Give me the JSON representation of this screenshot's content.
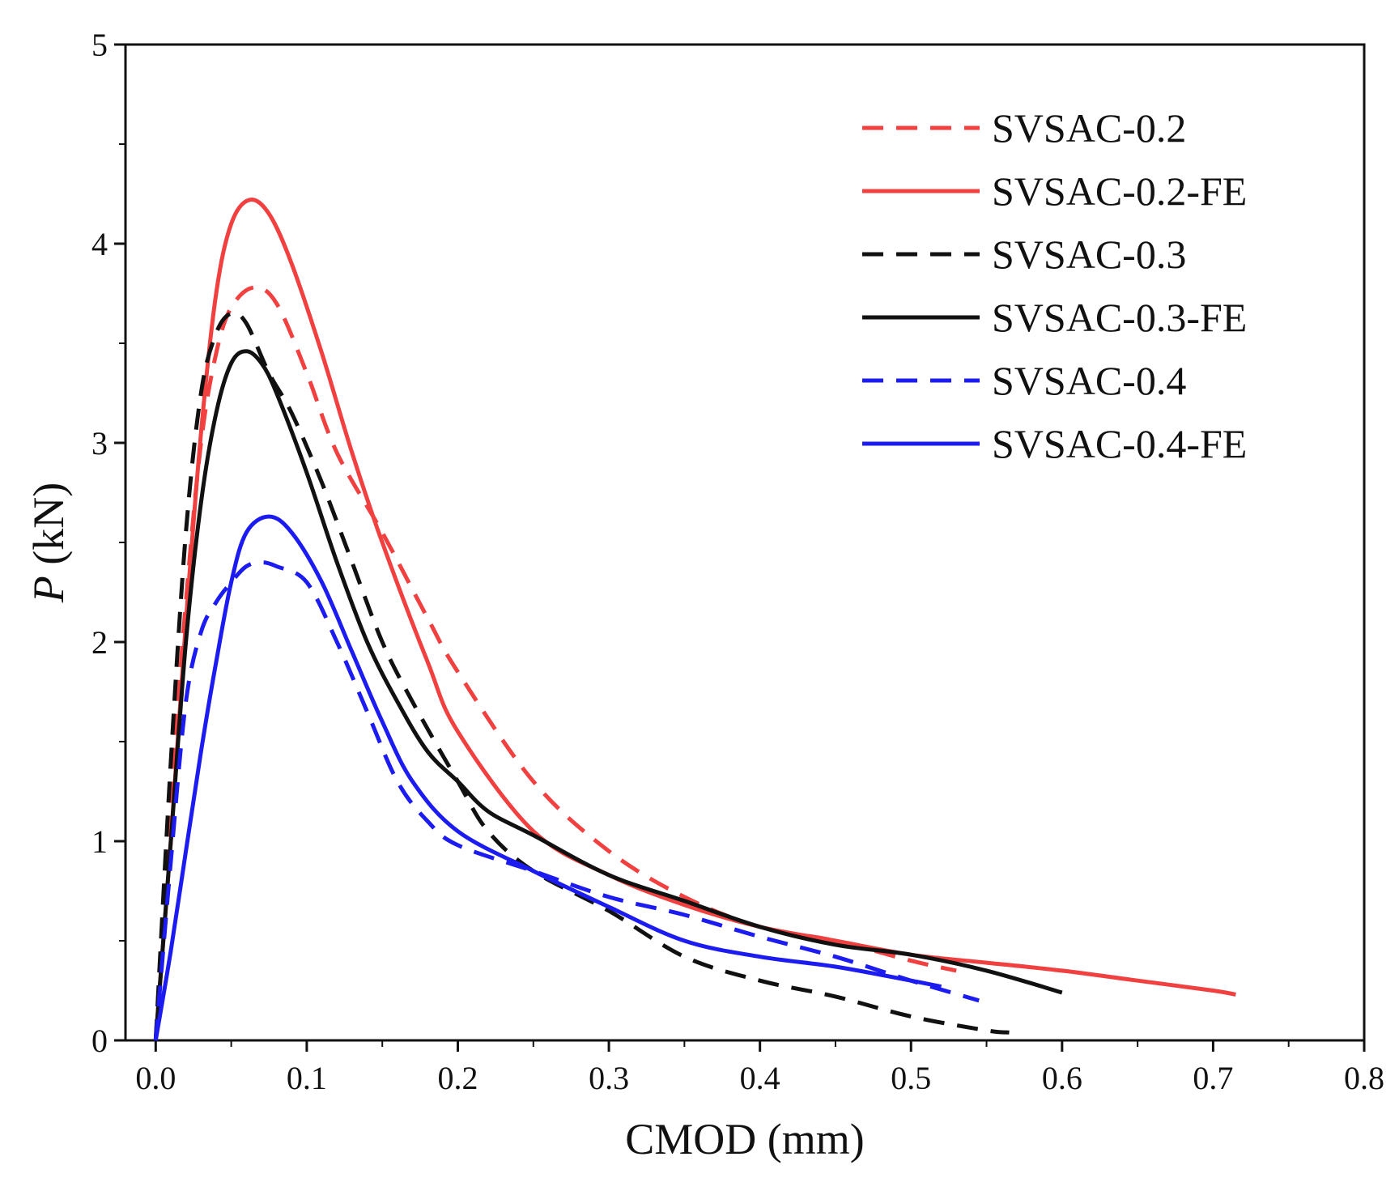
{
  "chart_data": {
    "type": "line",
    "title": "",
    "xlabel": "CMOD (mm)",
    "ylabel_italic": "P",
    "ylabel_unit": " (kN)",
    "xlim": [
      -0.02,
      0.8
    ],
    "ylim": [
      0,
      5
    ],
    "x_ticks": [
      "0.0",
      "0.1",
      "0.2",
      "0.3",
      "0.4",
      "0.5",
      "0.6",
      "0.7",
      "0.8"
    ],
    "x_tick_values": [
      0,
      0.1,
      0.2,
      0.3,
      0.4,
      0.5,
      0.6,
      0.7,
      0.8
    ],
    "y_ticks": [
      "0",
      "1",
      "2",
      "3",
      "4",
      "5"
    ],
    "y_tick_values": [
      0,
      1,
      2,
      3,
      4,
      5
    ],
    "grid": false,
    "legend_position": "top-right",
    "series": [
      {
        "name": "SVSAC-0.2",
        "color": "#f04040",
        "dash": "dashed",
        "x": [
          0.0,
          0.01,
          0.02,
          0.03,
          0.04,
          0.05,
          0.065,
          0.08,
          0.1,
          0.12,
          0.15,
          0.18,
          0.2,
          0.25,
          0.3,
          0.35,
          0.4,
          0.45,
          0.5,
          0.53
        ],
        "y": [
          0.0,
          1.2,
          2.2,
          3.0,
          3.45,
          3.68,
          3.78,
          3.7,
          3.35,
          2.95,
          2.55,
          2.12,
          1.85,
          1.3,
          0.95,
          0.72,
          0.57,
          0.5,
          0.4,
          0.35
        ]
      },
      {
        "name": "SVSAC-0.2-FE",
        "color": "#f04040",
        "dash": "solid",
        "x": [
          0.0,
          0.01,
          0.02,
          0.03,
          0.04,
          0.05,
          0.062,
          0.075,
          0.09,
          0.11,
          0.13,
          0.15,
          0.18,
          0.2,
          0.25,
          0.3,
          0.35,
          0.4,
          0.45,
          0.5,
          0.55,
          0.6,
          0.65,
          0.7,
          0.715
        ],
        "y": [
          0.0,
          1.0,
          2.1,
          3.05,
          3.75,
          4.1,
          4.22,
          4.15,
          3.9,
          3.45,
          2.95,
          2.5,
          1.9,
          1.55,
          1.05,
          0.83,
          0.68,
          0.57,
          0.5,
          0.43,
          0.39,
          0.35,
          0.3,
          0.25,
          0.23
        ]
      },
      {
        "name": "SVSAC-0.3",
        "color": "#111111",
        "dash": "dashed",
        "x": [
          0.0,
          0.01,
          0.02,
          0.03,
          0.04,
          0.05,
          0.06,
          0.075,
          0.09,
          0.11,
          0.13,
          0.15,
          0.17,
          0.2,
          0.22,
          0.25,
          0.3,
          0.35,
          0.4,
          0.45,
          0.5,
          0.55,
          0.565
        ],
        "y": [
          0.0,
          1.4,
          2.55,
          3.25,
          3.55,
          3.65,
          3.6,
          3.35,
          3.15,
          2.8,
          2.4,
          2.0,
          1.7,
          1.3,
          1.05,
          0.85,
          0.65,
          0.42,
          0.3,
          0.22,
          0.12,
          0.05,
          0.04
        ]
      },
      {
        "name": "SVSAC-0.3-FE",
        "color": "#111111",
        "dash": "solid",
        "x": [
          0.0,
          0.01,
          0.02,
          0.03,
          0.04,
          0.05,
          0.06,
          0.07,
          0.08,
          0.1,
          0.12,
          0.14,
          0.16,
          0.18,
          0.2,
          0.22,
          0.25,
          0.3,
          0.35,
          0.4,
          0.45,
          0.5,
          0.55,
          0.6
        ],
        "y": [
          0.0,
          1.0,
          2.0,
          2.7,
          3.15,
          3.4,
          3.46,
          3.4,
          3.25,
          2.85,
          2.4,
          2.0,
          1.7,
          1.45,
          1.3,
          1.15,
          1.03,
          0.83,
          0.7,
          0.57,
          0.48,
          0.43,
          0.35,
          0.24
        ]
      },
      {
        "name": "SVSAC-0.4",
        "color": "#1c1cf0",
        "dash": "dashed",
        "x": [
          0.0,
          0.01,
          0.02,
          0.03,
          0.04,
          0.05,
          0.06,
          0.07,
          0.08,
          0.1,
          0.12,
          0.14,
          0.16,
          0.18,
          0.2,
          0.25,
          0.3,
          0.35,
          0.4,
          0.45,
          0.5,
          0.545
        ],
        "y": [
          0.0,
          0.9,
          1.7,
          2.05,
          2.2,
          2.3,
          2.38,
          2.4,
          2.38,
          2.3,
          2.0,
          1.65,
          1.3,
          1.1,
          0.98,
          0.85,
          0.72,
          0.63,
          0.52,
          0.42,
          0.3,
          0.2
        ]
      },
      {
        "name": "SVSAC-0.4-FE",
        "color": "#1c1cf0",
        "dash": "solid",
        "x": [
          0.0,
          0.01,
          0.02,
          0.03,
          0.04,
          0.05,
          0.06,
          0.075,
          0.09,
          0.11,
          0.13,
          0.15,
          0.17,
          0.2,
          0.25,
          0.3,
          0.35,
          0.4,
          0.45,
          0.5,
          0.52
        ],
        "y": [
          0.0,
          0.45,
          0.95,
          1.45,
          1.9,
          2.3,
          2.55,
          2.63,
          2.55,
          2.3,
          1.95,
          1.6,
          1.3,
          1.05,
          0.85,
          0.67,
          0.5,
          0.42,
          0.37,
          0.3,
          0.27
        ]
      }
    ]
  }
}
